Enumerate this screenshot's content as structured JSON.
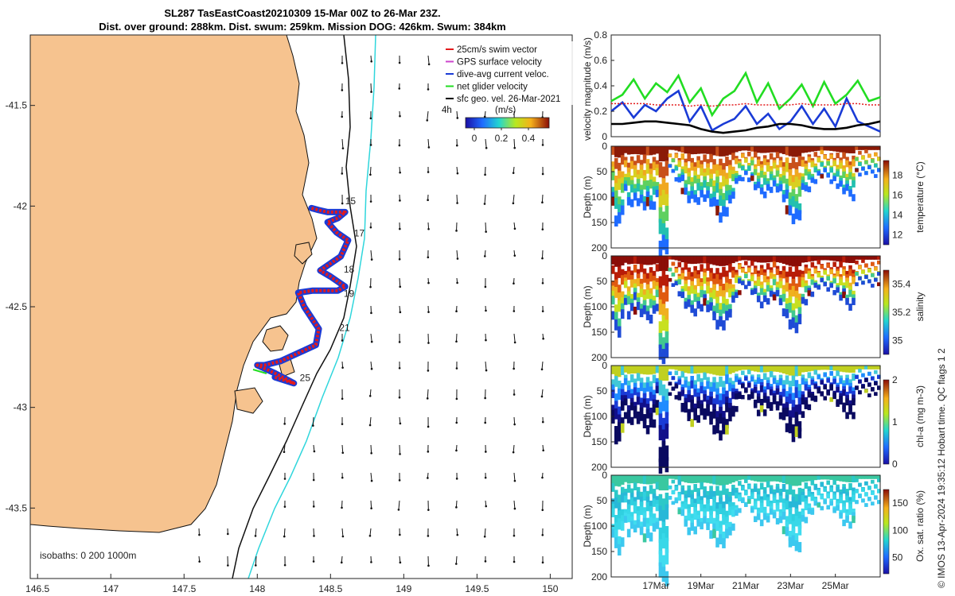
{
  "title": {
    "line1": "SL287 TasEastCoast20210309 15-Mar 00Z to 26-Mar 23Z.",
    "line2": "Dist. over ground: 288km. Dist. swum: 259km. Mission DOG: 426km. Swum: 384km"
  },
  "map": {
    "lon_ticks": [
      "146.5",
      "147",
      "147.5",
      "148",
      "148.5",
      "149",
      "149.5",
      "150"
    ],
    "lat_ticks": [
      "-41.5",
      "-42",
      "-42.5",
      "-43",
      "-43.5"
    ],
    "lon_range": [
      146.45,
      150.15
    ],
    "lat_range": [
      -43.85,
      -41.15
    ],
    "legend": [
      {
        "label": "25cm/s swim vector",
        "color": "#e31a1c"
      },
      {
        "label": "GPS surface velocity",
        "color": "#cc44cc"
      },
      {
        "label": "dive-avg current veloc.",
        "color": "#1a3bd6"
      },
      {
        "label": "net glider velocity",
        "color": "#22dd22"
      },
      {
        "label": "sfc geo. vel. 26-Mar-2021",
        "color": "#000000"
      }
    ],
    "legend_extra": "4h",
    "colorbar": {
      "label": "(m/s)",
      "ticks": [
        "0",
        "0.2",
        "0.4"
      ]
    },
    "isobath_text": "isobaths: 0   200   1000m",
    "day_labels": [
      {
        "day": "15",
        "lon": 148.6,
        "lat": -41.99
      },
      {
        "day": "17",
        "lon": 148.66,
        "lat": -42.15
      },
      {
        "day": "18",
        "lon": 148.59,
        "lat": -42.33
      },
      {
        "day": "19",
        "lon": 148.59,
        "lat": -42.45
      },
      {
        "day": "21",
        "lon": 148.56,
        "lat": -42.62
      },
      {
        "day": "25",
        "lon": 148.29,
        "lat": -42.87
      }
    ],
    "track": [
      [
        148.37,
        -42.01
      ],
      [
        148.42,
        -42.02
      ],
      [
        148.48,
        -42.03
      ],
      [
        148.6,
        -42.03
      ],
      [
        148.55,
        -42.06
      ],
      [
        148.48,
        -42.08
      ],
      [
        148.54,
        -42.13
      ],
      [
        148.62,
        -42.17
      ],
      [
        148.57,
        -42.25
      ],
      [
        148.47,
        -42.3
      ],
      [
        148.43,
        -42.32
      ],
      [
        148.5,
        -42.35
      ],
      [
        148.6,
        -42.4
      ],
      [
        148.55,
        -42.42
      ],
      [
        148.38,
        -42.42
      ],
      [
        148.28,
        -42.43
      ],
      [
        148.32,
        -42.5
      ],
      [
        148.42,
        -42.61
      ],
      [
        148.4,
        -42.69
      ],
      [
        148.28,
        -42.73
      ],
      [
        148.16,
        -42.77
      ],
      [
        148.05,
        -42.79
      ],
      [
        148.0,
        -42.79
      ],
      [
        148.12,
        -42.83
      ],
      [
        148.25,
        -42.88
      ],
      [
        148.12,
        -42.85
      ]
    ]
  },
  "chart_data": [
    {
      "type": "line",
      "title": "",
      "ylabel": "velocity magnitude (m/s)",
      "ylim": [
        0,
        0.8
      ],
      "yticks": [
        "0",
        "0.2",
        "0.4",
        "0.6",
        "0.8"
      ],
      "xlim": [
        15,
        27
      ],
      "x": [
        15,
        15.5,
        16,
        16.5,
        17,
        17.5,
        18,
        18.5,
        19,
        19.5,
        20,
        20.5,
        21,
        21.5,
        22,
        22.5,
        23,
        23.5,
        24,
        24.5,
        25,
        25.5,
        26,
        26.5,
        27
      ],
      "series": [
        {
          "name": "net glider velocity",
          "color": "#22dd22",
          "values": [
            0.28,
            0.33,
            0.45,
            0.3,
            0.42,
            0.35,
            0.48,
            0.27,
            0.38,
            0.17,
            0.3,
            0.36,
            0.5,
            0.27,
            0.42,
            0.22,
            0.3,
            0.41,
            0.24,
            0.43,
            0.26,
            0.33,
            0.44,
            0.28,
            0.31
          ]
        },
        {
          "name": "dive-avg current veloc.",
          "color": "#1a3bd6",
          "values": [
            0.2,
            0.27,
            0.15,
            0.25,
            0.2,
            0.3,
            0.36,
            0.12,
            0.24,
            0.05,
            0.1,
            0.14,
            0.24,
            0.1,
            0.18,
            0.06,
            0.12,
            0.24,
            0.1,
            0.22,
            0.08,
            0.3,
            0.12,
            0.08,
            0.04
          ]
        },
        {
          "name": "25cm/s swim vector",
          "color": "#e31a1c",
          "values": [
            0.26,
            0.26,
            0.26,
            0.26,
            0.25,
            0.25,
            0.25,
            0.24,
            0.25,
            0.24,
            0.25,
            0.25,
            0.26,
            0.25,
            0.25,
            0.25,
            0.25,
            0.26,
            0.25,
            0.25,
            0.25,
            0.26,
            0.26,
            0.25,
            0.25
          ]
        },
        {
          "name": "sfc geo. vel.",
          "color": "#000000",
          "values": [
            0.1,
            0.1,
            0.11,
            0.12,
            0.12,
            0.11,
            0.1,
            0.09,
            0.06,
            0.04,
            0.03,
            0.04,
            0.05,
            0.07,
            0.08,
            0.1,
            0.1,
            0.09,
            0.07,
            0.06,
            0.06,
            0.07,
            0.09,
            0.1,
            0.12
          ]
        }
      ]
    },
    {
      "type": "heatmap",
      "ylabel": "Depth (m)",
      "yticks": [
        "0",
        "50",
        "100",
        "150",
        "200"
      ],
      "ylim": [
        200,
        0
      ],
      "colorbar_label": "temperature (°C)",
      "colorbar_ticks": [
        "12",
        "14",
        "16",
        "18"
      ],
      "colorbar_range": [
        11,
        19.5
      ]
    },
    {
      "type": "heatmap",
      "ylabel": "Depth (m)",
      "yticks": [
        "0",
        "50",
        "100",
        "150",
        "200"
      ],
      "ylim": [
        200,
        0
      ],
      "colorbar_label": "salinity",
      "colorbar_ticks": [
        "35",
        "35.2",
        "35.4"
      ],
      "colorbar_range": [
        34.9,
        35.5
      ]
    },
    {
      "type": "heatmap",
      "ylabel": "Depth (m)",
      "yticks": [
        "0",
        "50",
        "100",
        "150",
        "200"
      ],
      "ylim": [
        200,
        0
      ],
      "colorbar_label": "chl-a (mg m-3)",
      "colorbar_ticks": [
        "0",
        "1",
        "2"
      ],
      "colorbar_range": [
        0,
        2
      ]
    },
    {
      "type": "heatmap",
      "ylabel": "Depth (m)",
      "yticks": [
        "0",
        "50",
        "100",
        "150",
        "200"
      ],
      "ylim": [
        200,
        0
      ],
      "colorbar_label": "Ox. sat. ratio (%)",
      "colorbar_ticks": [
        "50",
        "100",
        "150"
      ],
      "colorbar_range": [
        20,
        175
      ],
      "xticks": [
        "17Mar",
        "19Mar",
        "21Mar",
        "23Mar",
        "25Mar"
      ]
    }
  ],
  "footnote": "© IMOS 13-Apr-2024 19:35:12 Hobart time. QC flags 1  2"
}
